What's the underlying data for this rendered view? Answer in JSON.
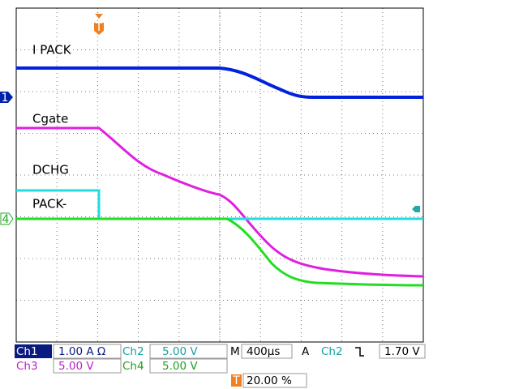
{
  "traces": [
    {
      "label": "I PACK"
    },
    {
      "label": "Cgate"
    },
    {
      "label": "DCHG"
    },
    {
      "label": "PACK-"
    }
  ],
  "markers": {
    "ch1": "1",
    "ch4": "4",
    "trigger": "T"
  },
  "status": {
    "ch1": {
      "name": "Ch1",
      "scale": "1.00 A Ω"
    },
    "ch2": {
      "name": "Ch2",
      "scale": "5.00 V"
    },
    "ch3": {
      "name": "Ch3",
      "scale": "5.00 V"
    },
    "ch4": {
      "name": "Ch4",
      "scale": "5.00 V"
    }
  },
  "timebase": {
    "label": "M",
    "value": "400µs"
  },
  "trigger": {
    "label": "A",
    "source": "Ch2",
    "level": "1.70 V",
    "position": "20.00 %"
  }
}
